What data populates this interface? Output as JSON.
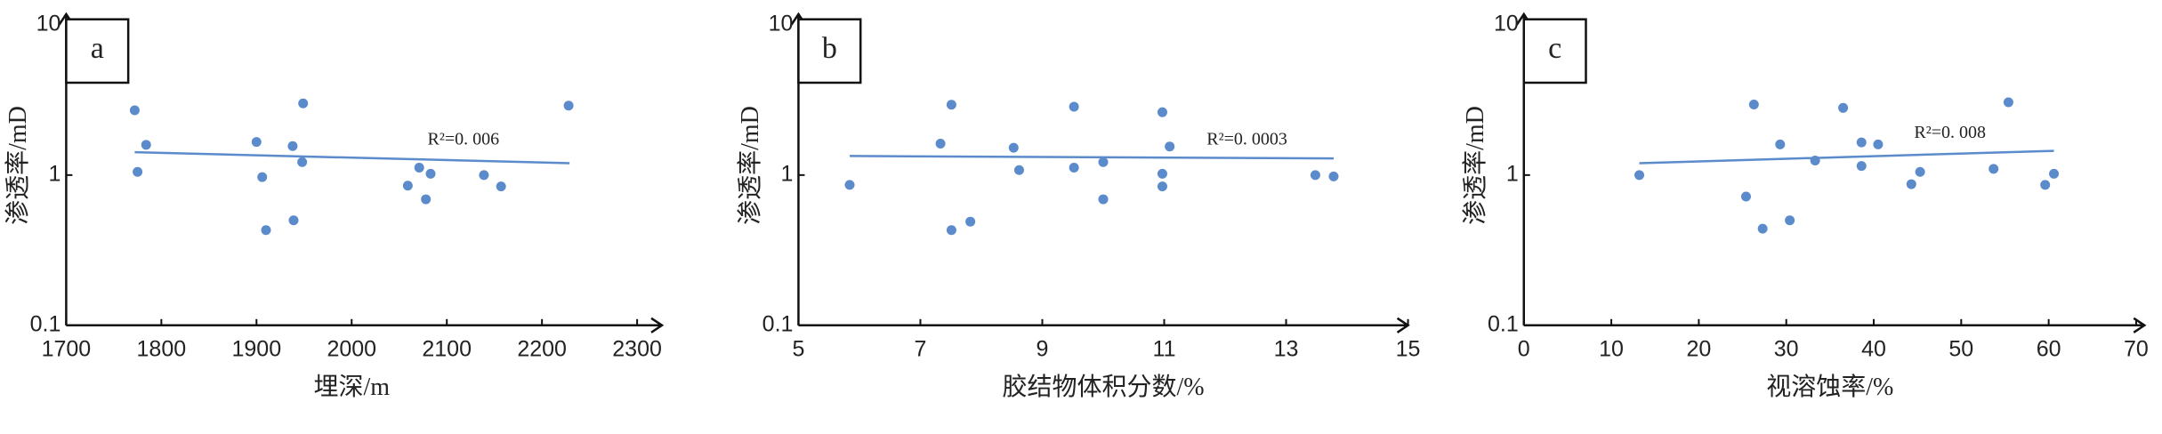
{
  "chart_data": [
    {
      "type": "scatter",
      "panel_label": "a",
      "ylabel": "渗透率/mD",
      "xlabel": "埋深/m",
      "color": "#5b8bcb",
      "log_y": true,
      "xlim": [
        1700,
        2300
      ],
      "xticks": [
        1700,
        1800,
        1900,
        2000,
        2100,
        2200,
        2300
      ],
      "ylim": [
        0.1,
        10
      ],
      "yticks": [
        0.1,
        1,
        10
      ],
      "x": [
        1772,
        1775,
        1784,
        1900,
        1906,
        1910,
        1938,
        1939,
        1948,
        1949,
        2059,
        2071,
        2078,
        2083,
        2139,
        2157,
        2228
      ],
      "values": [
        2.7,
        1.05,
        1.59,
        1.66,
        0.97,
        0.43,
        1.56,
        0.5,
        1.22,
        3.0,
        0.85,
        1.12,
        0.69,
        1.02,
        1.0,
        0.84,
        2.9
      ],
      "trendline": {
        "x": [
          1772,
          2229
        ],
        "values": [
          1.42,
          1.2
        ]
      },
      "annotation": "R²=0. 006"
    },
    {
      "type": "scatter",
      "panel_label": "b",
      "ylabel": "渗透率/mD",
      "xlabel": "胶结物体积分数/%",
      "color": "#5b8bcb",
      "log_y": true,
      "xlim": [
        5,
        15
      ],
      "xticks": [
        5,
        7,
        9,
        11,
        13,
        15
      ],
      "ylim": [
        0.1,
        10
      ],
      "yticks": [
        0.1,
        1,
        10
      ],
      "x": [
        5.84,
        7.33,
        7.51,
        7.51,
        7.82,
        8.53,
        8.62,
        9.52,
        9.52,
        10.0,
        10.0,
        10.97,
        10.97,
        10.97,
        11.09,
        13.48,
        13.78
      ],
      "values": [
        0.86,
        1.62,
        2.94,
        0.43,
        0.49,
        1.52,
        1.08,
        2.85,
        1.12,
        1.22,
        0.69,
        2.62,
        1.02,
        0.84,
        1.55,
        1.0,
        0.98
      ],
      "trendline": {
        "x": [
          5.84,
          13.78
        ],
        "values": [
          1.34,
          1.29
        ]
      },
      "annotation": "R²=0. 0003"
    },
    {
      "type": "scatter",
      "panel_label": "c",
      "ylabel": "渗透率/mD",
      "xlabel": "视溶蚀率/%",
      "color": "#5b8bcb",
      "log_y": true,
      "xlim": [
        0,
        70
      ],
      "xticks": [
        0,
        10,
        20,
        30,
        40,
        50,
        60,
        70
      ],
      "ylim": [
        0.1,
        10
      ],
      "yticks": [
        0.1,
        1,
        10
      ],
      "x": [
        13.2,
        25.4,
        26.3,
        27.3,
        29.3,
        30.4,
        33.3,
        36.5,
        38.6,
        38.6,
        40.5,
        44.3,
        45.3,
        53.7,
        55.4,
        59.6,
        60.6
      ],
      "values": [
        1.0,
        0.72,
        2.95,
        0.44,
        1.6,
        0.5,
        1.25,
        2.8,
        1.65,
        1.15,
        1.6,
        0.87,
        1.05,
        1.1,
        3.05,
        0.86,
        1.02
      ],
      "trendline": {
        "x": [
          13.2,
          60.6
        ],
        "values": [
          1.2,
          1.45
        ]
      },
      "annotation": "R²=0. 008"
    }
  ]
}
